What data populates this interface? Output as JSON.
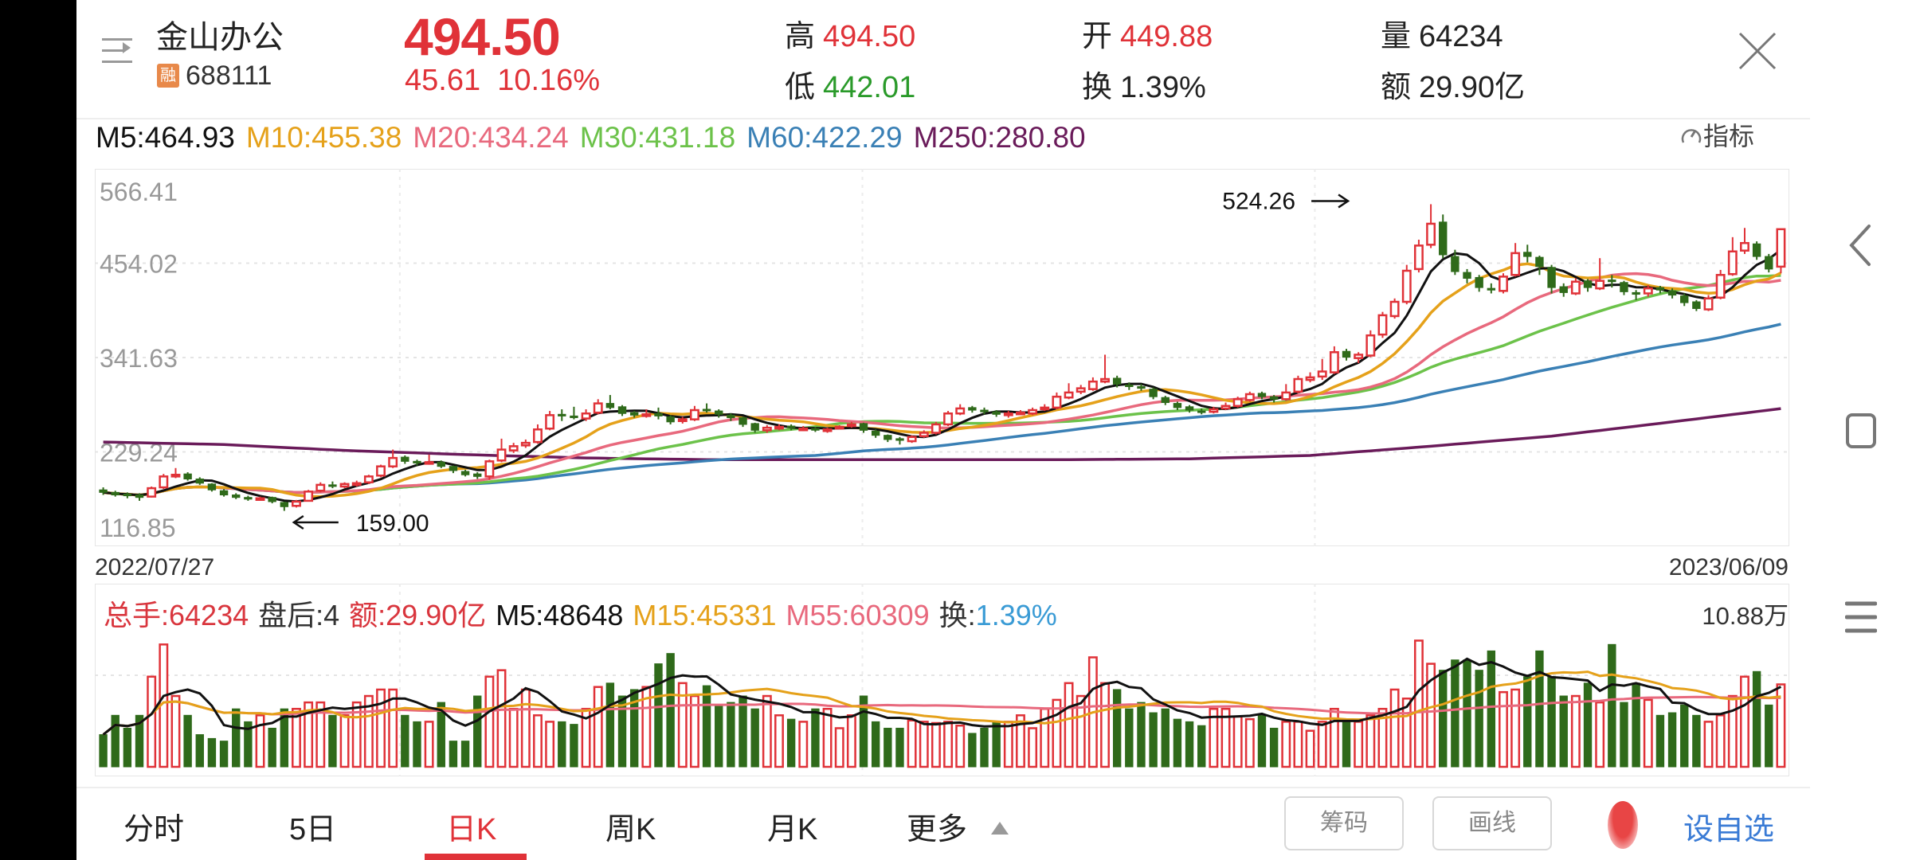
{
  "header": {
    "stock_name": "金山办公",
    "margin_badge": "融",
    "stock_code": "688111",
    "price": "494.50",
    "change": "45.61",
    "change_pct": "10.16%",
    "high_label": "高",
    "high": "494.50",
    "low_label": "低",
    "low": "442.01",
    "open_label": "开",
    "open": "449.88",
    "turnover_label": "换",
    "turnover": "1.39%",
    "volume_label": "量",
    "volume": "64234",
    "amount_label": "额",
    "amount": "29.90亿"
  },
  "ma_legend": {
    "m5": "M5:464.93",
    "m10": "M10:455.38",
    "m20": "M20:434.24",
    "m30": "M30:431.18",
    "m60": "M60:422.29",
    "m250": "M250:280.80"
  },
  "indicator_button": "指标",
  "colors": {
    "up": "#e03238",
    "down": "#2f6a1a",
    "ma5": "#111111",
    "ma10": "#e5a11a",
    "ma20": "#e8697d",
    "ma30": "#6cc24a",
    "ma60": "#3a80b5",
    "ma250": "#6a1b5a",
    "vm15": "#e5a11a",
    "vm55": "#e8697d",
    "accent_blue": "#3a7bd5",
    "turnover_blue": "#3a9bd5"
  },
  "dates": {
    "start": "2022/07/27",
    "end": "2023/06/09"
  },
  "annotations": {
    "high": "524.26",
    "low": "159.00"
  },
  "volume_legend": {
    "total": "总手:64234",
    "after_hours": "盘后:4",
    "amount": "额:29.90亿",
    "m5": "M5:48648",
    "m15": "M15:45331",
    "m55": "M55:60309",
    "turnover_label": "换:",
    "turnover": "1.39%",
    "max": "10.88万"
  },
  "chart_data": {
    "type": "candlestick",
    "y_ticks": [
      "566.41",
      "454.02",
      "341.63",
      "229.24",
      "116.85"
    ],
    "ylim": [
      116.85,
      566.41
    ],
    "x_range": [
      "2022/07/27",
      "2023/06/09"
    ],
    "grid": true,
    "open": [
      184,
      181,
      179,
      178,
      176,
      187,
      200,
      203,
      197,
      191,
      183,
      178,
      175,
      174,
      175,
      169,
      165,
      171,
      183,
      190,
      188,
      190,
      193,
      201,
      212,
      223,
      218,
      216,
      217,
      212,
      206,
      203,
      200,
      219,
      231,
      237,
      241,
      257,
      274,
      272,
      269,
      276,
      287,
      283,
      276,
      272,
      275,
      271,
      266,
      268,
      280,
      278,
      273,
      270,
      263,
      255,
      258,
      260,
      257,
      257,
      255,
      259,
      260,
      263,
      254,
      249,
      245,
      242,
      248,
      252,
      262,
      275,
      282,
      279,
      277,
      273,
      276,
      275,
      280,
      282,
      294,
      301,
      304,
      313,
      317,
      309,
      307,
      304,
      294,
      287,
      283,
      278,
      277,
      281,
      284,
      291,
      299,
      295,
      292,
      301,
      315,
      319,
      324,
      349,
      341,
      344,
      369,
      391,
      408,
      447,
      476,
      503,
      462,
      443,
      437,
      424,
      421,
      440,
      467,
      461,
      449,
      426,
      418,
      433,
      424,
      434,
      431,
      419,
      418,
      425,
      421,
      415,
      408,
      399,
      413,
      441,
      469,
      477,
      462,
      449.88
    ],
    "high": [
      187,
      183,
      181,
      180,
      188,
      203,
      210,
      205,
      199,
      192,
      185,
      180,
      177,
      176,
      176,
      170,
      172,
      184,
      193,
      194,
      193,
      195,
      202,
      214,
      232,
      225,
      220,
      226,
      219,
      213,
      208,
      205,
      220,
      245,
      240,
      244,
      262,
      278,
      280,
      283,
      280,
      292,
      297,
      285,
      278,
      280,
      282,
      273,
      271,
      284,
      287,
      280,
      275,
      271,
      264,
      261,
      262,
      262,
      260,
      259,
      258,
      261,
      265,
      264,
      256,
      250,
      247,
      249,
      255,
      265,
      278,
      286,
      284,
      282,
      279,
      278,
      279,
      282,
      286,
      300,
      311,
      309,
      318,
      345,
      320,
      312,
      310,
      306,
      296,
      289,
      285,
      281,
      283,
      288,
      295,
      301,
      301,
      297,
      310,
      320,
      324,
      340,
      355,
      352,
      348,
      374,
      396,
      412,
      452,
      482,
      524.26,
      512,
      470,
      447,
      440,
      430,
      442,
      478,
      476,
      463,
      452,
      430,
      436,
      435,
      460,
      440,
      433,
      422,
      428,
      427,
      424,
      418,
      410,
      416,
      446,
      485,
      496,
      480,
      465,
      494.5
    ],
    "low": [
      178,
      176,
      174,
      171,
      175,
      185,
      198,
      195,
      190,
      182,
      176,
      173,
      171,
      171,
      168,
      159,
      163,
      170,
      181,
      186,
      186,
      188,
      191,
      199,
      210,
      215,
      213,
      214,
      210,
      204,
      200,
      197,
      196,
      217,
      228,
      234,
      239,
      255,
      266,
      268,
      266,
      274,
      280,
      272,
      270,
      270,
      268,
      262,
      263,
      266,
      276,
      270,
      266,
      259,
      252,
      252,
      255,
      255,
      254,
      253,
      252,
      256,
      258,
      252,
      246,
      241,
      238,
      240,
      246,
      250,
      260,
      273,
      276,
      274,
      271,
      270,
      273,
      273,
      278,
      280,
      292,
      298,
      302,
      311,
      306,
      303,
      302,
      292,
      285,
      279,
      276,
      274,
      275,
      279,
      282,
      289,
      292,
      288,
      290,
      299,
      312,
      315,
      322,
      338,
      335,
      342,
      365,
      388,
      405,
      443,
      472,
      460,
      440,
      430,
      420,
      418,
      418,
      438,
      455,
      440,
      418,
      414,
      416,
      420,
      422,
      425,
      416,
      410,
      414,
      418,
      412,
      403,
      397,
      397,
      411,
      439,
      465,
      458,
      443,
      442.01
    ],
    "close": [
      181,
      178,
      177,
      175,
      186,
      200,
      202,
      197,
      192,
      184,
      178,
      175,
      173,
      174,
      170,
      164,
      170,
      182,
      190,
      189,
      191,
      192,
      200,
      212,
      222,
      218,
      216,
      217,
      212,
      207,
      202,
      200,
      218,
      232,
      236,
      240,
      256,
      273,
      272,
      270,
      275,
      287,
      282,
      275,
      273,
      274,
      272,
      265,
      268,
      279,
      279,
      274,
      270,
      262,
      255,
      258,
      259,
      258,
      257,
      256,
      256,
      259,
      262,
      255,
      249,
      244,
      243,
      247,
      252,
      262,
      275,
      281,
      279,
      277,
      274,
      275,
      276,
      279,
      282,
      295,
      300,
      305,
      313,
      316,
      310,
      307,
      305,
      295,
      288,
      282,
      279,
      277,
      280,
      284,
      292,
      298,
      295,
      292,
      300,
      316,
      318,
      325,
      348,
      342,
      345,
      368,
      392,
      408,
      445,
      475,
      501,
      464,
      444,
      436,
      425,
      422,
      438,
      466,
      462,
      450,
      425,
      419,
      432,
      425,
      433,
      432,
      420,
      417,
      424,
      422,
      416,
      407,
      400,
      412,
      440,
      468,
      478,
      462,
      447,
      494.5
    ],
    "ma250_sampled_every_10_bars": [
      241,
      238,
      231,
      226,
      222,
      220,
      220,
      220,
      220,
      221,
      225,
      236,
      248,
      265,
      280.8
    ],
    "volume_unit": "万",
    "volume": [
      2.5,
      4,
      3,
      4,
      7,
      9.5,
      5.5,
      4,
      2.5,
      2.2,
      2,
      4.5,
      3.5,
      4,
      3,
      4.5,
      4.5,
      5,
      5,
      4,
      4,
      5,
      5.5,
      6,
      6,
      4,
      3.5,
      3.5,
      5,
      2,
      2,
      5.5,
      7,
      7.5,
      4.5,
      6,
      4,
      3.5,
      3.5,
      3.3,
      4.5,
      6.2,
      6.5,
      5.5,
      6,
      6.2,
      8,
      8.8,
      6.5,
      5.5,
      6.3,
      4.8,
      5,
      5.5,
      4.5,
      5.5,
      4,
      3.7,
      3.5,
      4.5,
      4.5,
      3,
      4,
      5.5,
      3.5,
      3,
      3,
      3.6,
      3.5,
      3.4,
      3.5,
      3.2,
      2.6,
      3,
      3.5,
      3.5,
      4,
      3,
      4.5,
      5.2,
      6.5,
      5.5,
      8.5,
      6.5,
      6,
      4.5,
      5,
      4.2,
      4.5,
      3.7,
      3.5,
      3.2,
      4.5,
      4.5,
      3.9,
      3.7,
      4,
      3,
      3.5,
      3.5,
      2.8,
      3.5,
      4.5,
      3.5,
      3.5,
      4,
      4.5,
      6,
      5.3,
      9.8,
      8,
      7.5,
      8.3,
      8.3,
      7.5,
      9,
      5.8,
      6,
      7,
      9,
      7,
      5.5,
      5.5,
      6.5,
      5,
      9.5,
      5,
      6.5,
      5.2,
      4,
      4.2,
      4.8,
      4,
      3.5,
      4,
      5.5,
      7,
      7.4,
      4.8,
      6.4
    ],
    "volume_max": 10.88
  },
  "tabs": [
    {
      "label": "分时"
    },
    {
      "label": "5日"
    },
    {
      "label": "日K"
    },
    {
      "label": "周K"
    },
    {
      "label": "月K"
    },
    {
      "label": "更多"
    }
  ],
  "buttons": {
    "chips": "筹码",
    "draw": "画线",
    "add_favorite": "设自选"
  }
}
